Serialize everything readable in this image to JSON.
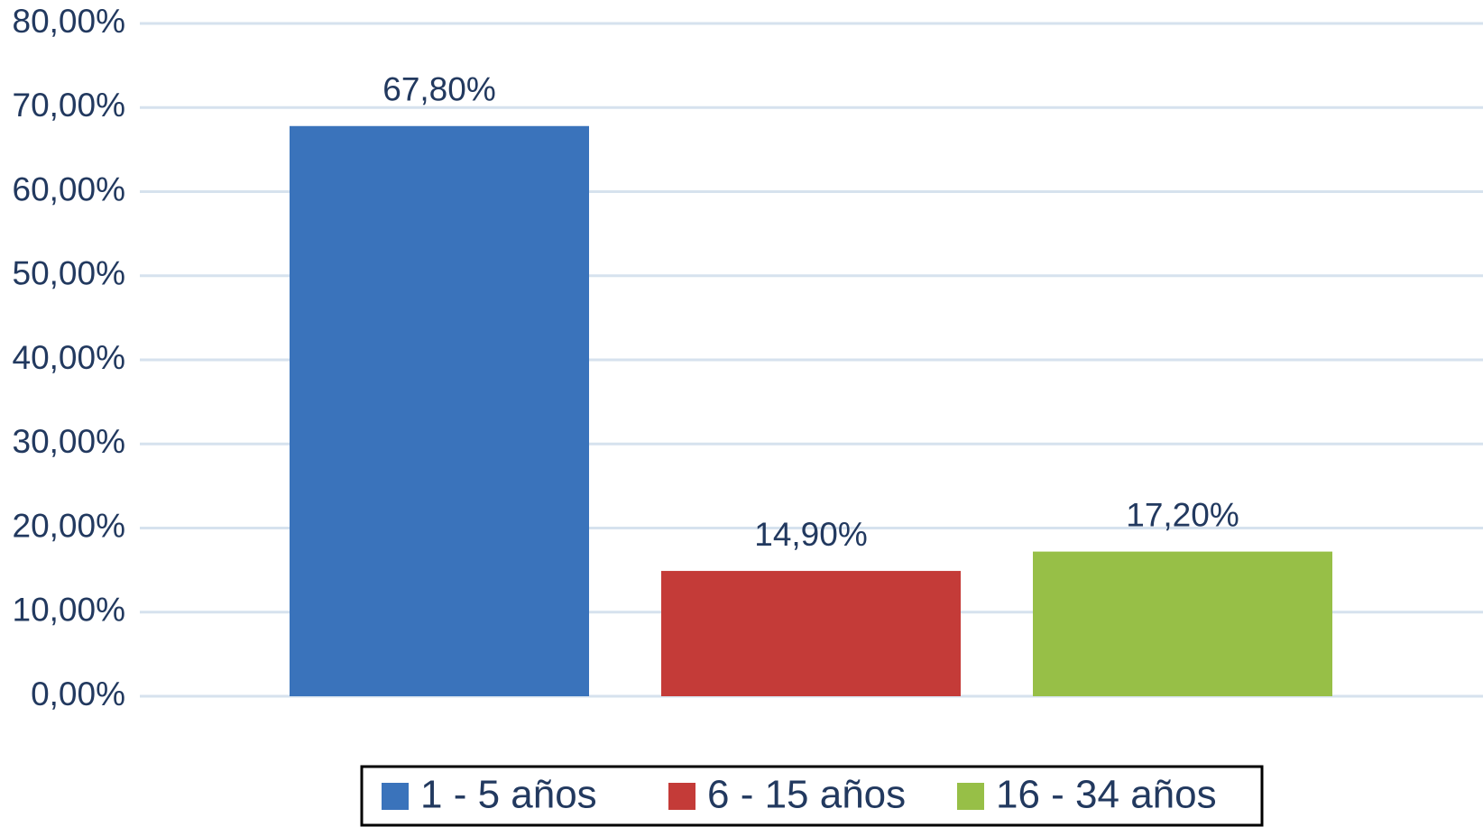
{
  "chart_data": {
    "type": "bar",
    "series": [
      {
        "name": "1 - 5 años",
        "color": "#3a73bb",
        "values": [
          67.8
        ],
        "value_labels": [
          "67,80%"
        ]
      },
      {
        "name": "6 - 15 años",
        "color": "#c43b38",
        "values": [
          14.9
        ],
        "value_labels": [
          "14,90%"
        ]
      },
      {
        "name": "16 - 34 años",
        "color": "#97bf47",
        "values": [
          17.2
        ],
        "value_labels": [
          "17,20%"
        ]
      }
    ],
    "ylim": [
      0,
      80
    ],
    "yticks": [
      {
        "value": 0,
        "label": "0,00%"
      },
      {
        "value": 10,
        "label": "10,00%"
      },
      {
        "value": 20,
        "label": "20,00%"
      },
      {
        "value": 30,
        "label": "30,00%"
      },
      {
        "value": 40,
        "label": "40,00%"
      },
      {
        "value": 50,
        "label": "50,00%"
      },
      {
        "value": 60,
        "label": "60,00%"
      },
      {
        "value": 70,
        "label": "70,00%"
      },
      {
        "value": 80,
        "label": "80,00%"
      }
    ],
    "grid": true,
    "legend": "bottom"
  }
}
